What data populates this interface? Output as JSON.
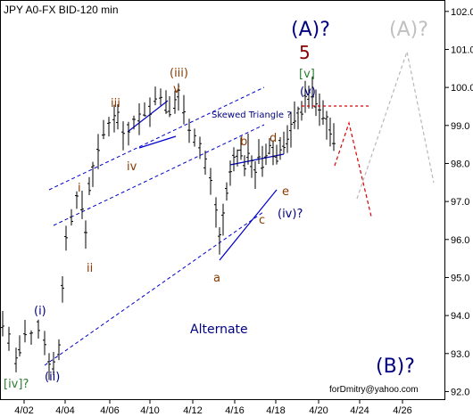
{
  "chart_data": {
    "type": "candlestick",
    "title": "JPY A0-FX BID-120 min",
    "x_ticks": [
      "4/02",
      "4/04",
      "4/06",
      "4/10",
      "4/12",
      "4/16",
      "4/18",
      "4/20",
      "4/24",
      "4/26"
    ],
    "y_ticks": [
      "102.0",
      "101.0",
      "100.0",
      "99.0",
      "98.0",
      "97.0",
      "96.0",
      "95.0",
      "94.0",
      "93.0",
      "92.0"
    ],
    "ylim": [
      91.8,
      102.3
    ],
    "grid": false,
    "legend": "none",
    "colors": {
      "candles": "#000000",
      "channel": "#0000cc",
      "navy_labels": "#000080",
      "red_labels": "#8b0000",
      "green_labels": "#2e7d32",
      "orange_labels": "#8b3a00",
      "forecast_red": "#dd0000",
      "forecast_gray": "#c0c0c0"
    },
    "anchor_points": [
      {
        "date": "4/02",
        "low": 92.5
      },
      {
        "date": "4/04",
        "low": 92.6
      },
      {
        "date": "4/06",
        "high": 99.5
      },
      {
        "date": "4/10",
        "high": 99.9
      },
      {
        "date": "4/12",
        "high": 99.8
      },
      {
        "date": "4/15",
        "low": 95.7
      },
      {
        "date": "4/18",
        "high": 98.6
      },
      {
        "date": "4/19",
        "low": 97.8
      },
      {
        "date": "4/20",
        "high": 99.9
      },
      {
        "date": "4/21",
        "low": 98.5
      }
    ],
    "annotations": {
      "big_wave": "(A)?",
      "big_wave_gray": "(A)?",
      "count_five": "5",
      "bracket_v": "[v]",
      "paren_v": "(v)",
      "paren_iii": "(iii)",
      "wave_v_small": "v",
      "wave_iii": "iii",
      "wave_iv": "iv",
      "wave_i": "i",
      "wave_ii": "ii",
      "paren_i": "(i)",
      "paren_ii": "(ii)",
      "bracket_iv": "[iv]?",
      "skewed_triangle": "Skewed Triangle ?",
      "tri_a": "a",
      "tri_b": "b",
      "tri_c": "c",
      "tri_d": "d",
      "tri_e": "e",
      "paren_iv": "(iv)?",
      "alternate": "Alternate",
      "big_b": "(B)?",
      "credit": "forDmitry@yahoo.com"
    }
  }
}
